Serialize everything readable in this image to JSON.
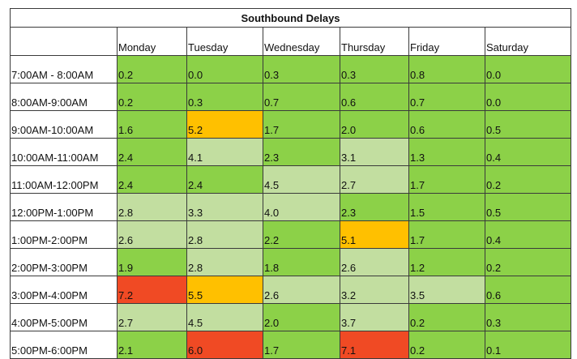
{
  "title": "Southbound Delays",
  "corner": "",
  "days": [
    "Monday",
    "Tuesday",
    "Wednesday",
    "Thursday",
    "Friday",
    "Saturday"
  ],
  "colors": {
    "low": "#8cd148",
    "moderate": "#c2dea0",
    "high": "#ffc000",
    "severe": "#f04a24"
  },
  "rows": [
    {
      "time": "7:00AM - 8:00AM",
      "values": [
        "0.2",
        "0.0",
        "0.3",
        "0.3",
        "0.8",
        "0.0"
      ],
      "levels": [
        "low",
        "low",
        "low",
        "low",
        "low",
        "low"
      ]
    },
    {
      "time": "8:00AM-9:00AM",
      "values": [
        "0.2",
        "0.3",
        "0.7",
        "0.6",
        "0.7",
        "0.0"
      ],
      "levels": [
        "low",
        "low",
        "low",
        "low",
        "low",
        "low"
      ]
    },
    {
      "time": "9:00AM-10:00AM",
      "values": [
        "1.6",
        "5.2",
        "1.7",
        "2.0",
        "0.6",
        "0.5"
      ],
      "levels": [
        "low",
        "high",
        "low",
        "low",
        "low",
        "low"
      ]
    },
    {
      "time": "10:00AM-11:00AM",
      "values": [
        "2.4",
        "4.1",
        "2.3",
        "3.1",
        "1.3",
        "0.4"
      ],
      "levels": [
        "low",
        "moderate",
        "low",
        "moderate",
        "low",
        "low"
      ]
    },
    {
      "time": "11:00AM-12:00PM",
      "values": [
        "2.4",
        "2.4",
        "4.5",
        "2.7",
        "1.7",
        "0.2"
      ],
      "levels": [
        "low",
        "low",
        "moderate",
        "moderate",
        "low",
        "low"
      ]
    },
    {
      "time": "12:00PM-1:00PM",
      "values": [
        "2.8",
        "3.3",
        "4.0",
        "2.3",
        "1.5",
        "0.5"
      ],
      "levels": [
        "moderate",
        "moderate",
        "moderate",
        "low",
        "low",
        "low"
      ]
    },
    {
      "time": "1:00PM-2:00PM",
      "values": [
        "2.6",
        "2.8",
        "2.2",
        "5.1",
        "1.7",
        "0.4"
      ],
      "levels": [
        "moderate",
        "moderate",
        "low",
        "high",
        "low",
        "low"
      ]
    },
    {
      "time": "2:00PM-3:00PM",
      "values": [
        "1.9",
        "2.8",
        "1.8",
        "2.6",
        "1.2",
        "0.2"
      ],
      "levels": [
        "low",
        "moderate",
        "low",
        "moderate",
        "low",
        "low"
      ]
    },
    {
      "time": "3:00PM-4:00PM",
      "values": [
        "7.2",
        "5.5",
        "2.6",
        "3.2",
        "3.5",
        "0.6"
      ],
      "levels": [
        "severe",
        "high",
        "moderate",
        "moderate",
        "moderate",
        "low"
      ]
    },
    {
      "time": "4:00PM-5:00PM",
      "values": [
        "2.7",
        "4.5",
        "2.0",
        "3.7",
        "0.2",
        "0.3"
      ],
      "levels": [
        "moderate",
        "moderate",
        "low",
        "moderate",
        "low",
        "low"
      ]
    },
    {
      "time": "5:00PM-6:00PM",
      "values": [
        "2.1",
        "6.0",
        "1.7",
        "7.1",
        "0.2",
        "0.1"
      ],
      "levels": [
        "low",
        "severe",
        "low",
        "severe",
        "low",
        "low"
      ]
    }
  ]
}
